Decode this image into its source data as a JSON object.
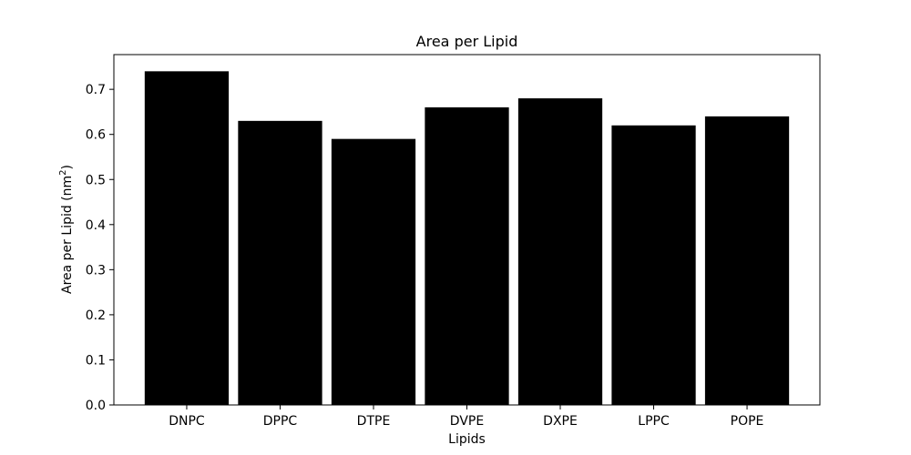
{
  "chart_data": {
    "type": "bar",
    "title": "Area per Lipid",
    "xlabel": "Lipids",
    "ylabel_main": "Area per Lipid (nm",
    "ylabel_sup": "2",
    "ylabel_end": ")",
    "categories": [
      "DNPC",
      "DPPC",
      "DTPE",
      "DVPE",
      "DXPE",
      "LPPC",
      "POPE"
    ],
    "values": [
      0.74,
      0.63,
      0.59,
      0.66,
      0.68,
      0.62,
      0.64
    ],
    "ylim": [
      0,
      0.777
    ],
    "yticks": [
      0.0,
      0.1,
      0.2,
      0.3,
      0.4,
      0.5,
      0.6,
      0.7
    ],
    "ytick_labels": [
      "0.0",
      "0.1",
      "0.2",
      "0.3",
      "0.4",
      "0.5",
      "0.6",
      "0.7"
    ],
    "bar_color": "#000000",
    "grid": false,
    "legend": false
  }
}
